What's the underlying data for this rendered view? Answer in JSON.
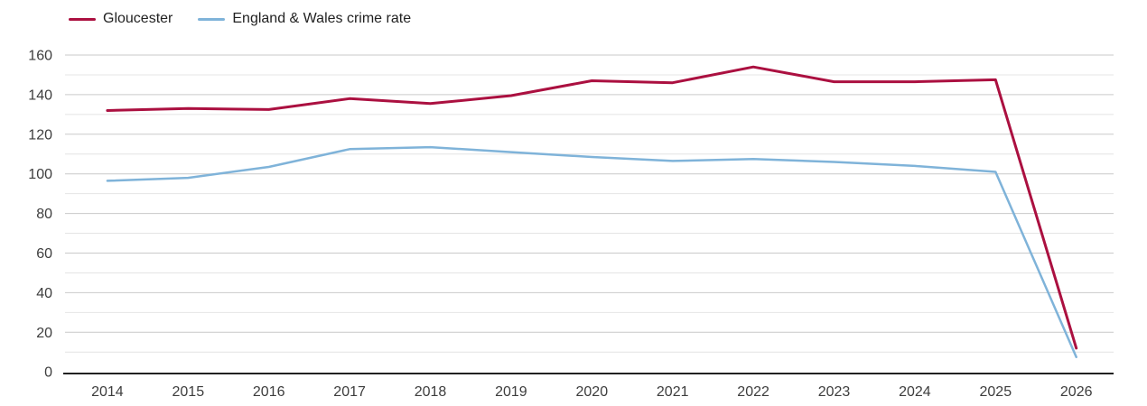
{
  "chart_data": {
    "type": "line",
    "title": "",
    "x": [
      "2014",
      "2015",
      "2016",
      "2017",
      "2018",
      "2019",
      "2020",
      "2021",
      "2022",
      "2023",
      "2024",
      "2025",
      "2026"
    ],
    "series": [
      {
        "name": "Gloucester",
        "color": "#ab1040",
        "values": [
          132,
          133,
          132.5,
          138,
          135.5,
          139.5,
          147,
          146,
          154,
          146.5,
          146.5,
          147.5,
          12
        ]
      },
      {
        "name": "England & Wales crime rate",
        "color": "#7fb3d9",
        "values": [
          96.5,
          98,
          103.5,
          112.5,
          113.5,
          111,
          108.5,
          106.5,
          107.5,
          106,
          104,
          101,
          7.5
        ]
      }
    ],
    "xlabel": "",
    "ylabel": "",
    "ylim": [
      0,
      160
    ],
    "yticks": [
      0,
      20,
      40,
      60,
      80,
      100,
      120,
      140,
      160
    ],
    "grid": {
      "minor_step": 10,
      "major_step": 20,
      "major_color": "#c9c9c9",
      "minor_color": "#e4e4e4"
    },
    "axis_color": "#222222",
    "tick_label_color": "#3d3d3d",
    "legend_position": "top-left"
  }
}
